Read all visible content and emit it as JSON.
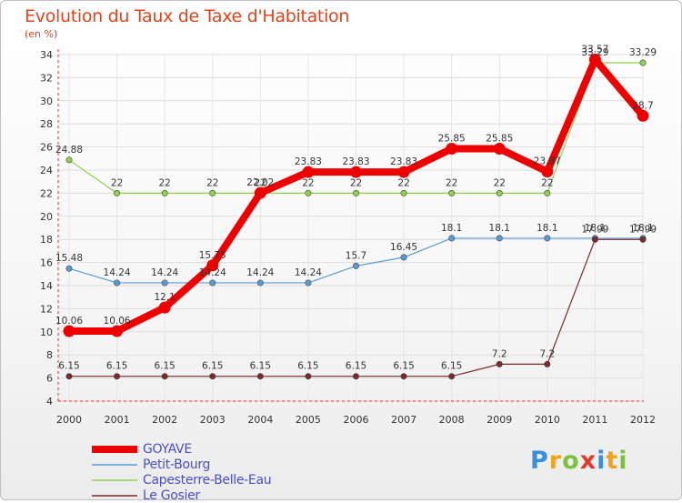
{
  "title": "Evolution du Taux de Taxe d'Habitation",
  "unit": "(en %)",
  "logo": "Proxiti",
  "chart_data": {
    "type": "line",
    "title": "Evolution du Taux de Taxe d'Habitation",
    "ylabel": "(en %)",
    "xlabel": "",
    "categories": [
      "2000",
      "2001",
      "2002",
      "2003",
      "2004",
      "2005",
      "2006",
      "2007",
      "2008",
      "2009",
      "2010",
      "2011",
      "2012"
    ],
    "ylim": [
      4,
      34
    ],
    "yticks": [
      4,
      6,
      8,
      10,
      12,
      14,
      16,
      18,
      20,
      22,
      24,
      26,
      28,
      30,
      32,
      34
    ],
    "grid": true,
    "legend": "bottom-left",
    "series": [
      {
        "name": "GOYAVE",
        "color": "#ee0000",
        "highlight": true,
        "values": [
          10.06,
          10.06,
          12.1,
          15.75,
          22.02,
          23.83,
          23.83,
          23.83,
          25.85,
          25.85,
          23.87,
          33.57,
          28.7
        ],
        "labels": [
          "10.06",
          "10.06",
          "12.1",
          "15.75",
          "22.02",
          "23.83",
          "23.83",
          "23.83",
          "25.85",
          "25.85",
          "23.87",
          "33.57",
          "28.7"
        ]
      },
      {
        "name": "Petit-Bourg",
        "color": "#5b9bd5",
        "highlight": false,
        "values": [
          15.48,
          14.24,
          14.24,
          14.24,
          14.24,
          14.24,
          15.7,
          16.45,
          18.1,
          18.1,
          18.1,
          18.1,
          18.1
        ],
        "labels": [
          "15.48",
          "14.24",
          "14.24",
          "14.24",
          "14.24",
          "14.24",
          "15.7",
          "16.45",
          "18.1",
          "18.1",
          "18.1",
          "18.1",
          "18.1"
        ]
      },
      {
        "name": "Capesterre-Belle-Eau",
        "color": "#8fd14f",
        "highlight": false,
        "values": [
          24.88,
          22,
          22,
          22,
          22,
          22,
          22,
          22,
          22,
          22,
          22,
          33.29,
          33.29
        ],
        "labels": [
          "24.88",
          "22",
          "22",
          "22",
          "22",
          "22",
          "22",
          "22",
          "22",
          "22",
          "22",
          "33.29",
          "33.29"
        ]
      },
      {
        "name": "Le Gosier",
        "color": "#7a2a2a",
        "highlight": false,
        "values": [
          6.15,
          6.15,
          6.15,
          6.15,
          6.15,
          6.15,
          6.15,
          6.15,
          6.15,
          7.2,
          7.2,
          17.99,
          17.99
        ],
        "labels": [
          "6.15",
          "6.15",
          "6.15",
          "6.15",
          "6.15",
          "6.15",
          "6.15",
          "6.15",
          "6.15",
          "7.2",
          "7.2",
          "17.99",
          "17.99"
        ]
      }
    ]
  }
}
